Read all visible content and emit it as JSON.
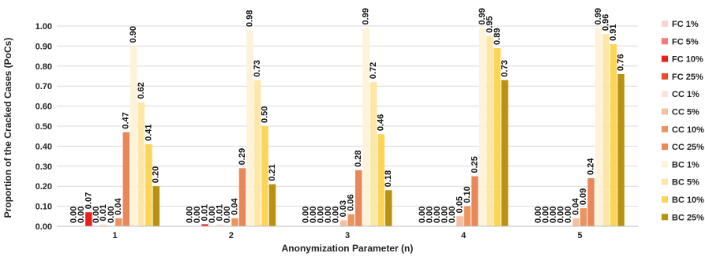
{
  "chart_data": {
    "type": "bar",
    "title": "",
    "xlabel": "Anonymization Parameter (n)",
    "ylabel": "Proportion of the Cracked Cases (PoCs)",
    "ylim": [
      0,
      1.0
    ],
    "yticks": [
      "0.00",
      "0.10",
      "0.20",
      "0.30",
      "0.40",
      "0.50",
      "0.60",
      "0.70",
      "0.80",
      "0.90",
      "1.00"
    ],
    "grid": true,
    "legend_position": "right",
    "categories": [
      "1",
      "2",
      "3",
      "4",
      "5"
    ],
    "series": [
      {
        "name": "FC 1%",
        "color": "#fbd3cf",
        "values": [
          0.0,
          0.0,
          0.0,
          0.0,
          0.0
        ],
        "labels": [
          "0.00",
          "0.00",
          "0.00",
          "0.00",
          "0.00"
        ]
      },
      {
        "name": "FC 5%",
        "color": "#f47c76",
        "values": [
          0.0,
          0.0,
          0.0,
          0.0,
          0.0
        ],
        "labels": [
          "0.00",
          "0.00",
          "0.00",
          "0.00",
          "0.00"
        ]
      },
      {
        "name": "FC 10%",
        "color": "#e8201d",
        "values": [
          0.07,
          0.01,
          0.0,
          0.0,
          0.0
        ],
        "labels": [
          "0.07",
          "0.01",
          "0.00",
          "0.00",
          "0.00"
        ]
      },
      {
        "name": "FC 25%",
        "color": "#f2472c",
        "values": [
          0.0,
          0.0,
          0.0,
          0.0,
          0.0
        ],
        "labels": [
          "0.00",
          "0.00",
          "0.00",
          "0.00",
          "0.00"
        ]
      },
      {
        "name": "CC 1%",
        "color": "#fbe5da",
        "values": [
          0.01,
          0.01,
          0.0,
          0.0,
          0.0
        ],
        "labels": [
          "0.01",
          "0.01",
          "0.00",
          "0.00",
          "0.00"
        ]
      },
      {
        "name": "CC 5%",
        "color": "#f5c0a0",
        "values": [
          0.0,
          0.0,
          0.03,
          0.05,
          0.04
        ],
        "labels": [
          "0.00",
          "0.00",
          "0.03",
          "0.05",
          "0.04"
        ]
      },
      {
        "name": "CC 10%",
        "color": "#ec9460",
        "values": [
          0.04,
          0.04,
          0.06,
          0.1,
          0.09
        ],
        "labels": [
          "0.04",
          "0.04",
          "0.06",
          "0.10",
          "0.09"
        ]
      },
      {
        "name": "CC 25%",
        "color": "#e8885a",
        "values": [
          0.47,
          0.29,
          0.28,
          0.25,
          0.24
        ],
        "labels": [
          "0.47",
          "0.29",
          "0.28",
          "0.25",
          "0.24"
        ]
      },
      {
        "name": "BC 1%",
        "color": "#fdf3d8",
        "values": [
          0.9,
          0.98,
          0.99,
          0.99,
          0.99
        ],
        "labels": [
          "0.90",
          "0.98",
          "0.99",
          "0.99",
          "0.99"
        ]
      },
      {
        "name": "BC 5%",
        "color": "#fde6a8",
        "values": [
          0.62,
          0.73,
          0.72,
          0.95,
          0.96
        ],
        "labels": [
          "0.62",
          "0.73",
          "0.72",
          "0.95",
          "0.96"
        ]
      },
      {
        "name": "BC 10%",
        "color": "#fcd557",
        "values": [
          0.41,
          0.5,
          0.46,
          0.89,
          0.91
        ],
        "labels": [
          "0.41",
          "0.50",
          "0.46",
          "0.89",
          "0.91"
        ]
      },
      {
        "name": "BC 25%",
        "color": "#bb9112",
        "values": [
          0.2,
          0.21,
          0.18,
          0.73,
          0.76
        ],
        "labels": [
          "0.20",
          "0.21",
          "0.18",
          "0.73",
          "0.76"
        ]
      }
    ]
  }
}
